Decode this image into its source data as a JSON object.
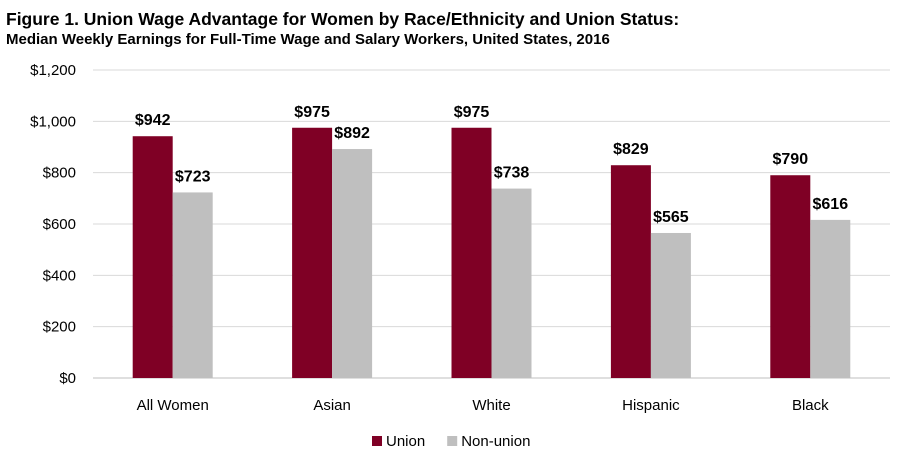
{
  "chart_data": {
    "type": "bar",
    "title": "Figure 1. Union Wage Advantage for Women by Race/Ethnicity and Union Status:",
    "subtitle": "Median Weekly Earnings for Full-Time Wage and Salary Workers, United States, 2016",
    "categories": [
      "All Women",
      "Asian",
      "White",
      "Hispanic",
      "Black"
    ],
    "series": [
      {
        "name": "Union",
        "values": [
          942,
          975,
          975,
          829,
          790
        ],
        "labels": [
          "$942",
          "$975",
          "$975",
          "$829",
          "$790"
        ],
        "color": "#7f0025"
      },
      {
        "name": "Non-union",
        "values": [
          723,
          892,
          738,
          565,
          616
        ],
        "labels": [
          "$723",
          "$892",
          "$738",
          "$565",
          "$616"
        ],
        "color": "#bfbfbf"
      }
    ],
    "ylim": [
      0,
      1200
    ],
    "yticks": [
      0,
      200,
      400,
      600,
      800,
      1000,
      1200
    ],
    "ytick_labels": [
      "$0",
      "$200",
      "$400",
      "$600",
      "$800",
      "$1,000",
      "$1,200"
    ],
    "grid": true,
    "legend": "bottom-center",
    "xlabel": "",
    "ylabel": ""
  }
}
